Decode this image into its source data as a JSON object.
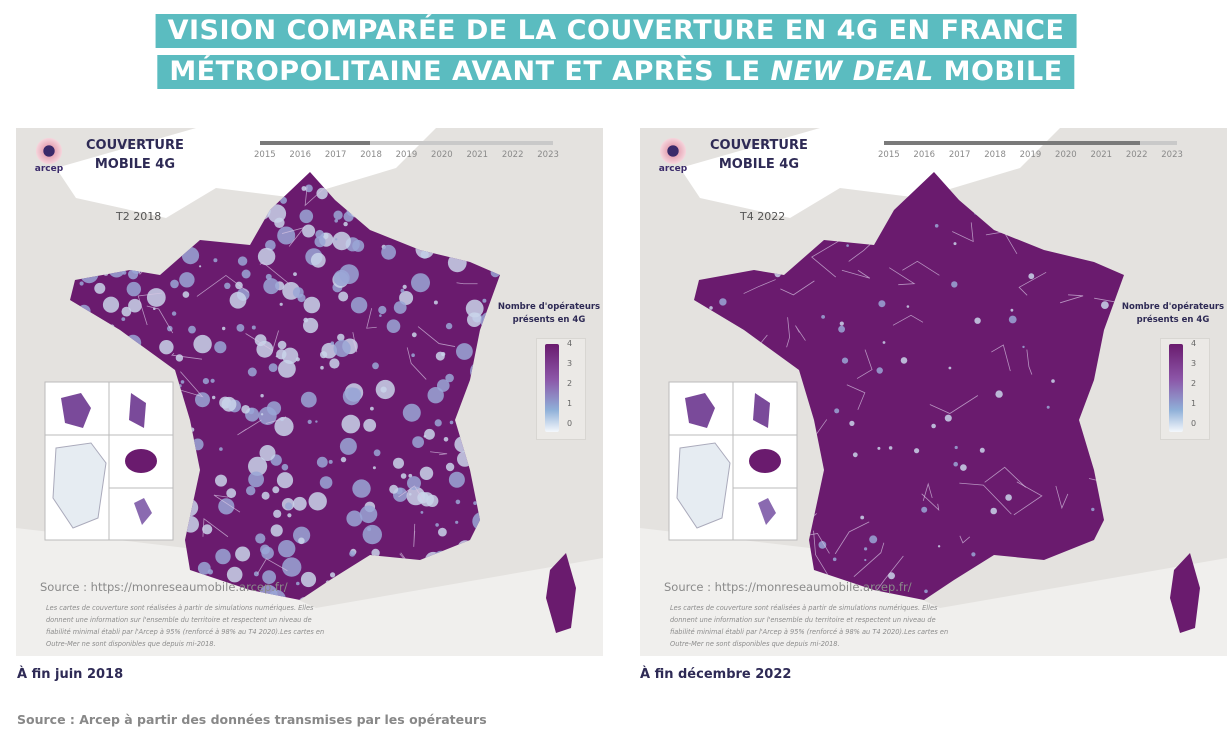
{
  "title": {
    "line1": "VISION COMPARÉE DE LA COUVERTURE EN 4G EN FRANCE",
    "line2_part1": "MÉTROPOLITAINE AVANT ET APRÈS LE ",
    "line2_italic": "NEW DEAL",
    "line2_part2": " MOBILE"
  },
  "colors": {
    "accent": "#5bbcc0",
    "coverage_full": "#6a1b6e",
    "coverage_none": "#f4f8fc",
    "text_dark": "#2e2a55"
  },
  "timeline_years": [
    "2015",
    "2016",
    "2017",
    "2018",
    "2019",
    "2020",
    "2021",
    "2022",
    "2023"
  ],
  "maps": [
    {
      "logo": "arcep",
      "title_l1": "COUVERTURE",
      "title_l2": "MOBILE 4G",
      "period": "T2 2018",
      "timeline_selected": "2018",
      "coverage_level": "partial",
      "legend_title": "Nombre d'opérateurs présents en 4G",
      "legend_labels": [
        "4",
        "3",
        "2",
        "1",
        "0"
      ],
      "source": "Source : https://monreseaumobile.arcep.fr/",
      "note": "Les cartes de couverture sont réalisées à partir de simulations numériques. Elles donnent une information sur l'ensemble du territoire et respectent un niveau de fiabilité minimal établi par l'Arcep à 95% (renforcé à 98% au T4 2020).Les cartes en Outre-Mer ne sont disponibles que depuis mi-2018.",
      "caption": "À fin juin 2018"
    },
    {
      "logo": "arcep",
      "title_l1": "COUVERTURE",
      "title_l2": "MOBILE 4G",
      "period": "T4 2022",
      "timeline_selected": "2022",
      "coverage_level": "near-complete",
      "legend_title": "Nombre d'opérateurs présents en 4G",
      "legend_labels": [
        "4",
        "3",
        "2",
        "1",
        "0"
      ],
      "source": "Source : https://monreseaumobile.arcep.fr/",
      "note": "Les cartes de couverture sont réalisées à partir de simulations numériques. Elles donnent une information sur l'ensemble du territoire et respectent un niveau de fiabilité minimal établi par l'Arcep à 95% (renforcé à 98% au T4 2020).Les cartes en Outre-Mer ne sont disponibles que depuis mi-2018.",
      "caption": "À fin décembre 2022"
    }
  ],
  "source": "Source : Arcep à partir des données transmises par les opérateurs"
}
